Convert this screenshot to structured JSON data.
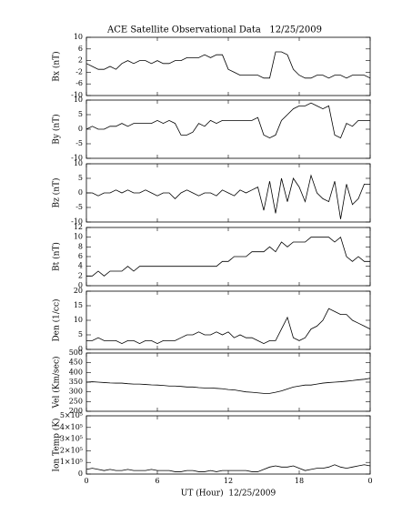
{
  "chart_data": [
    {
      "type": "line",
      "title": "ACE Satellite Observational Data   12/25/2009",
      "ylabel": "Bx (nT)",
      "ylim": [
        -10,
        10
      ],
      "yticks": [
        -10,
        -6,
        -2,
        2,
        6,
        10
      ],
      "x": [
        0,
        0.5,
        1,
        1.5,
        2,
        2.5,
        3,
        3.5,
        4,
        4.5,
        5,
        5.5,
        6,
        6.5,
        7,
        7.5,
        8,
        8.5,
        9,
        9.5,
        10,
        10.5,
        11,
        11.5,
        12,
        12.5,
        13,
        13.5,
        14,
        14.5,
        15,
        15.5,
        16,
        16.5,
        17,
        17.5,
        18,
        18.5,
        19,
        19.5,
        20,
        20.5,
        21,
        21.5,
        22,
        22.5,
        23,
        23.5,
        24
      ],
      "series": [
        {
          "color": "#000000",
          "values": [
            1,
            0,
            -1,
            -1,
            0,
            -1,
            1,
            2,
            1,
            2,
            2,
            1,
            2,
            1,
            1,
            2,
            2,
            3,
            3,
            3,
            4,
            3,
            4,
            4,
            -1,
            -2,
            -3,
            -3,
            -3,
            -3,
            -4,
            -4,
            5,
            5,
            4,
            -1,
            -3,
            -4,
            -4,
            -3,
            -3,
            -4,
            -3,
            -3,
            -4,
            -3,
            -3,
            -3,
            -4
          ]
        }
      ]
    },
    {
      "type": "line",
      "ylabel": "By (nT)",
      "ylim": [
        -10,
        10
      ],
      "yticks": [
        -10,
        -5,
        0,
        5,
        10
      ],
      "x": [
        0,
        0.5,
        1,
        1.5,
        2,
        2.5,
        3,
        3.5,
        4,
        4.5,
        5,
        5.5,
        6,
        6.5,
        7,
        7.5,
        8,
        8.5,
        9,
        9.5,
        10,
        10.5,
        11,
        11.5,
        12,
        12.5,
        13,
        13.5,
        14,
        14.5,
        15,
        15.5,
        16,
        16.5,
        17,
        17.5,
        18,
        18.5,
        19,
        19.5,
        20,
        20.5,
        21,
        21.5,
        22,
        22.5,
        23,
        23.5,
        24
      ],
      "series": [
        {
          "color": "#000000",
          "values": [
            0,
            1,
            0,
            0,
            1,
            1,
            2,
            1,
            2,
            2,
            2,
            2,
            3,
            2,
            3,
            2,
            -2,
            -2,
            -1,
            2,
            1,
            3,
            2,
            3,
            3,
            3,
            3,
            3,
            3,
            4,
            -2,
            -3,
            -2,
            3,
            5,
            7,
            8,
            8,
            9,
            8,
            7,
            8,
            -2,
            -3,
            2,
            1,
            3,
            3,
            3
          ]
        }
      ]
    },
    {
      "type": "line",
      "ylabel": "Bz (nT)",
      "ylim": [
        -10,
        10
      ],
      "yticks": [
        -10,
        -5,
        0,
        5,
        10
      ],
      "x": [
        0,
        0.5,
        1,
        1.5,
        2,
        2.5,
        3,
        3.5,
        4,
        4.5,
        5,
        5.5,
        6,
        6.5,
        7,
        7.5,
        8,
        8.5,
        9,
        9.5,
        10,
        10.5,
        11,
        11.5,
        12,
        12.5,
        13,
        13.5,
        14,
        14.5,
        15,
        15.5,
        16,
        16.5,
        17,
        17.5,
        18,
        18.5,
        19,
        19.5,
        20,
        20.5,
        21,
        21.5,
        22,
        22.5,
        23,
        23.5,
        24
      ],
      "series": [
        {
          "color": "#000000",
          "values": [
            0,
            0,
            -1,
            0,
            0,
            1,
            0,
            1,
            0,
            0,
            1,
            0,
            -1,
            0,
            0,
            -2,
            0,
            1,
            0,
            -1,
            0,
            0,
            -1,
            1,
            0,
            -1,
            1,
            0,
            1,
            2,
            -6,
            4,
            -7,
            5,
            -3,
            5,
            2,
            -3,
            6,
            0,
            -2,
            -3,
            4,
            -9,
            3,
            -4,
            -2,
            3,
            3
          ]
        }
      ]
    },
    {
      "type": "line",
      "ylabel": "Bt (nT)",
      "ylim": [
        0,
        12
      ],
      "yticks": [
        0,
        2,
        4,
        6,
        8,
        10,
        12
      ],
      "x": [
        0,
        0.5,
        1,
        1.5,
        2,
        2.5,
        3,
        3.5,
        4,
        4.5,
        5,
        5.5,
        6,
        6.5,
        7,
        7.5,
        8,
        8.5,
        9,
        9.5,
        10,
        10.5,
        11,
        11.5,
        12,
        12.5,
        13,
        13.5,
        14,
        14.5,
        15,
        15.5,
        16,
        16.5,
        17,
        17.5,
        18,
        18.5,
        19,
        19.5,
        20,
        20.5,
        21,
        21.5,
        22,
        22.5,
        23,
        23.5,
        24
      ],
      "series": [
        {
          "color": "#000000",
          "values": [
            2,
            2,
            3,
            2,
            3,
            3,
            3,
            4,
            3,
            4,
            4,
            4,
            4,
            4,
            4,
            4,
            4,
            4,
            4,
            4,
            4,
            4,
            4,
            5,
            5,
            6,
            6,
            6,
            7,
            7,
            7,
            8,
            7,
            9,
            8,
            9,
            9,
            9,
            10,
            10,
            10,
            10,
            9,
            10,
            6,
            5,
            6,
            5,
            5
          ]
        }
      ]
    },
    {
      "type": "line",
      "ylabel": "Den (1/cc)",
      "ylim": [
        0,
        20
      ],
      "yticks": [
        0,
        5,
        10,
        15,
        20
      ],
      "x": [
        0,
        0.5,
        1,
        1.5,
        2,
        2.5,
        3,
        3.5,
        4,
        4.5,
        5,
        5.5,
        6,
        6.5,
        7,
        7.5,
        8,
        8.5,
        9,
        9.5,
        10,
        10.5,
        11,
        11.5,
        12,
        12.5,
        13,
        13.5,
        14,
        14.5,
        15,
        15.5,
        16,
        16.5,
        17,
        17.5,
        18,
        18.5,
        19,
        19.5,
        20,
        20.5,
        21,
        21.5,
        22,
        22.5,
        23,
        23.5,
        24
      ],
      "series": [
        {
          "color": "#000000",
          "values": [
            3,
            3,
            4,
            3,
            3,
            3,
            2,
            3,
            3,
            2,
            3,
            3,
            2,
            3,
            3,
            3,
            4,
            5,
            5,
            6,
            5,
            5,
            6,
            5,
            6,
            4,
            5,
            4,
            4,
            3,
            2,
            3,
            3,
            7,
            11,
            4,
            3,
            4,
            7,
            8,
            10,
            14,
            13,
            12,
            12,
            10,
            9,
            8,
            7
          ]
        }
      ]
    },
    {
      "type": "line",
      "ylabel": "Vel (Km/sec)",
      "ylim": [
        200,
        500
      ],
      "yticks": [
        200,
        250,
        300,
        350,
        400,
        450,
        500
      ],
      "x": [
        0,
        0.5,
        1,
        1.5,
        2,
        2.5,
        3,
        3.5,
        4,
        4.5,
        5,
        5.5,
        6,
        6.5,
        7,
        7.5,
        8,
        8.5,
        9,
        9.5,
        10,
        10.5,
        11,
        11.5,
        12,
        12.5,
        13,
        13.5,
        14,
        14.5,
        15,
        15.5,
        16,
        16.5,
        17,
        17.5,
        18,
        18.5,
        19,
        19.5,
        20,
        20.5,
        21,
        21.5,
        22,
        22.5,
        23,
        23.5,
        24
      ],
      "series": [
        {
          "color": "#000000",
          "values": [
            350,
            352,
            350,
            348,
            346,
            345,
            345,
            342,
            340,
            340,
            338,
            336,
            335,
            333,
            330,
            330,
            328,
            325,
            325,
            322,
            320,
            320,
            318,
            316,
            312,
            310,
            305,
            300,
            298,
            295,
            292,
            292,
            298,
            305,
            315,
            325,
            330,
            335,
            335,
            340,
            345,
            348,
            350,
            352,
            355,
            358,
            362,
            365,
            370
          ]
        }
      ]
    },
    {
      "type": "line",
      "ylabel": "Ion Temp (K)",
      "ylim": [
        0,
        500000
      ],
      "yticks": [
        0,
        {
          "value": 100000,
          "label": "1×10⁵"
        },
        {
          "value": 200000,
          "label": "2×10⁵"
        },
        {
          "value": 300000,
          "label": "3×10⁵"
        },
        {
          "value": 400000,
          "label": "4×10⁵"
        },
        {
          "value": 500000,
          "label": "5×10⁵"
        }
      ],
      "xlabel": "UT (Hour)  12/25/2009",
      "xlim": [
        0,
        24
      ],
      "xticks": [
        0,
        6,
        12,
        18,
        {
          "value": 24,
          "label": "0"
        }
      ],
      "x": [
        0,
        0.5,
        1,
        1.5,
        2,
        2.5,
        3,
        3.5,
        4,
        4.5,
        5,
        5.5,
        6,
        6.5,
        7,
        7.5,
        8,
        8.5,
        9,
        9.5,
        10,
        10.5,
        11,
        11.5,
        12,
        12.5,
        13,
        13.5,
        14,
        14.5,
        15,
        15.5,
        16,
        16.5,
        17,
        17.5,
        18,
        18.5,
        19,
        19.5,
        20,
        20.5,
        21,
        21.5,
        22,
        22.5,
        23,
        23.5,
        24
      ],
      "series": [
        {
          "color": "#000000",
          "values": [
            40000,
            50000,
            40000,
            30000,
            40000,
            30000,
            30000,
            40000,
            30000,
            30000,
            30000,
            40000,
            30000,
            30000,
            30000,
            20000,
            20000,
            30000,
            30000,
            20000,
            20000,
            30000,
            20000,
            30000,
            30000,
            30000,
            30000,
            30000,
            20000,
            20000,
            40000,
            60000,
            70000,
            60000,
            60000,
            70000,
            50000,
            30000,
            40000,
            50000,
            50000,
            60000,
            80000,
            60000,
            50000,
            60000,
            70000,
            80000,
            70000
          ]
        }
      ]
    }
  ]
}
